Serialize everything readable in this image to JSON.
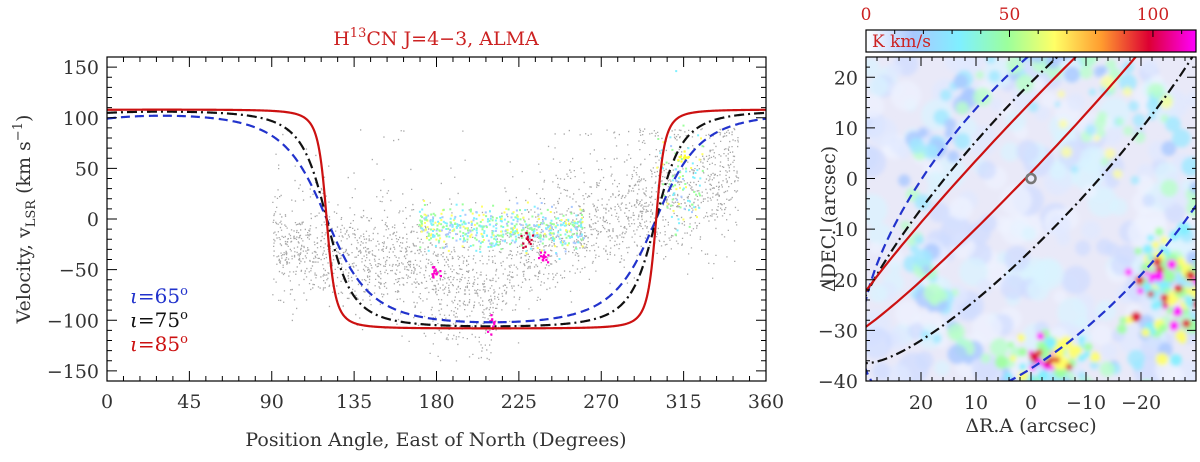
{
  "chart_data": [
    {
      "type": "scatter",
      "title": "H¹³CN J=4−3, ALMA",
      "title_parts": {
        "main": "H",
        "sup": "13",
        "rest": "CN J=4−3, ALMA"
      },
      "xlabel": "Position Angle, East of North (Degrees)",
      "ylabel_parts": {
        "main": "Velocity, v",
        "sub": "LSR",
        "unit": " (km s",
        "sup": "−1",
        "end": ")"
      },
      "xlim": [
        0,
        360
      ],
      "ylim": [
        -160,
        160
      ],
      "xticks": [
        0,
        45,
        90,
        135,
        180,
        225,
        270,
        315,
        360
      ],
      "yticks": [
        -150,
        -100,
        -50,
        0,
        50,
        100,
        150
      ],
      "title_color": "#cc2222",
      "legend_position": "bottom-left",
      "legend": [
        {
          "symbol": "ι",
          "equals": "=",
          "value": "65",
          "deg": "o",
          "color": "#2233cc"
        },
        {
          "symbol": "ι",
          "equals": "=",
          "value": "75",
          "deg": "o",
          "color": "#111111"
        },
        {
          "symbol": "ι",
          "equals": "=",
          "value": "85",
          "deg": "o",
          "color": "#cc1111"
        }
      ],
      "series": [
        {
          "inclination_deg": 65,
          "style": "dashed",
          "color": "#2233cc",
          "peak": {
            "x": 30,
            "y": 102
          },
          "trough": {
            "x": 210,
            "y": -102
          }
        },
        {
          "inclination_deg": 75,
          "style": "dash-dot",
          "color": "#111111",
          "peak": {
            "x": 30,
            "y": 106
          },
          "trough": {
            "x": 210,
            "y": -106
          }
        },
        {
          "inclination_deg": 85,
          "style": "solid",
          "color": "#cc1111",
          "peak": {
            "x": 30,
            "y": 108
          },
          "trough": {
            "x": 210,
            "y": -108
          }
        }
      ],
      "data_cloud": {
        "x_range": [
          90,
          345
        ],
        "y_range": [
          -140,
          90
        ],
        "colored_points": [
          {
            "x": 178,
            "y": -52,
            "color": "#ff00cc"
          },
          {
            "x": 210,
            "y": -104,
            "color": "#ff00cc"
          },
          {
            "x": 229,
            "y": -20,
            "color": "#cc0033"
          },
          {
            "x": 238,
            "y": -35,
            "color": "#ff00cc"
          },
          {
            "x": 315,
            "y": 60,
            "color": "#ffff33"
          }
        ]
      }
    },
    {
      "type": "heatmap",
      "xlabel": "ΔR.A (arcsec)",
      "ylabel": "ΔDEC. (arcsec)",
      "xlim": [
        30,
        -30
      ],
      "ylim": [
        -40,
        24
      ],
      "xticks": [
        20,
        10,
        0,
        -10,
        -20
      ],
      "yticks": [
        -40,
        -30,
        -20,
        -10,
        0,
        10,
        20
      ],
      "colorbar": {
        "label": "K km/s",
        "ticks": [
          0,
          50,
          100
        ],
        "range": [
          0,
          115
        ],
        "colors": [
          "#ffffff",
          "#a9c8ff",
          "#7ff0ff",
          "#9cff9c",
          "#ffff66",
          "#ff9b2f",
          "#dd0033",
          "#ff00ff"
        ],
        "tick_color": "#cc2222"
      },
      "marker": {
        "x": 0,
        "y": 0
      },
      "ellipses": [
        {
          "inclination_deg": 65,
          "style": "dashed",
          "color": "#2233cc"
        },
        {
          "inclination_deg": 75,
          "style": "dash-dot",
          "color": "#111111"
        },
        {
          "inclination_deg": 85,
          "style": "solid",
          "color": "#cc1111"
        }
      ]
    }
  ]
}
